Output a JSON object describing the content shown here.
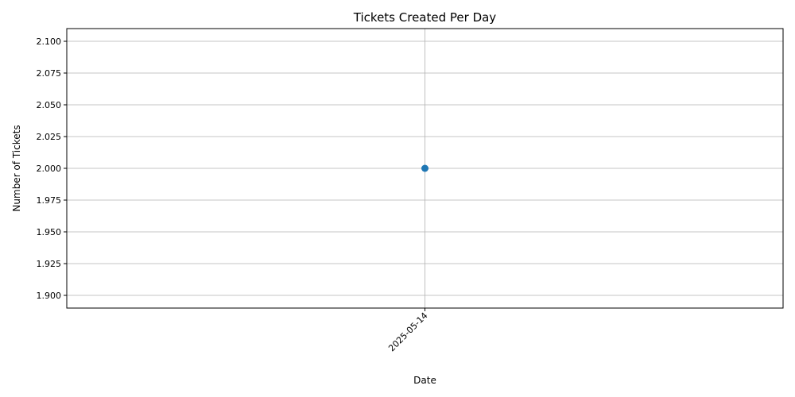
{
  "chart_data": {
    "type": "line",
    "title": "Tickets Created Per Day",
    "xlabel": "Date",
    "ylabel": "Number of Tickets",
    "x": [
      "2025-05-14"
    ],
    "series": [
      {
        "values": [
          2
        ],
        "color": "#1f77b4",
        "marker": "circle"
      }
    ],
    "ylim": [
      1.89,
      2.11
    ],
    "yticks": [
      "1.900",
      "1.925",
      "1.950",
      "1.975",
      "2.000",
      "2.025",
      "2.050",
      "2.075",
      "2.100"
    ],
    "xtick_rotation": 45,
    "grid": true
  }
}
